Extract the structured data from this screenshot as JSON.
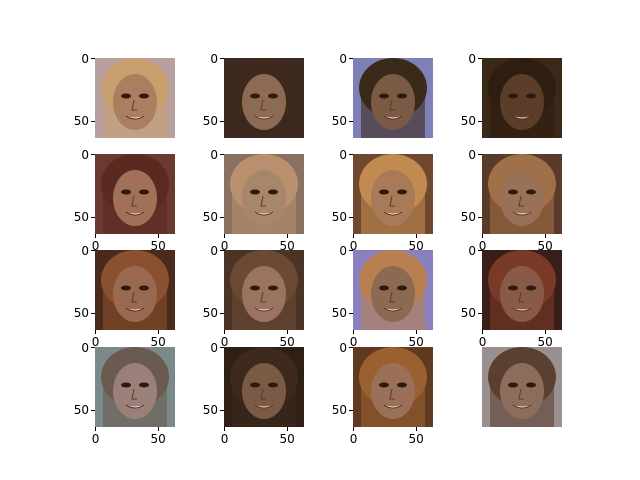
{
  "figure": {
    "y_tick_labels": [
      "0",
      "50"
    ],
    "x_tick_labels": [
      "0",
      "50"
    ],
    "panels": [
      {
        "row": 0,
        "col": 0,
        "subject": "generated-face",
        "tone": "#a97f60",
        "bg": "#b8a0a0",
        "hair": "#c8a070",
        "x_ticks": false,
        "y_ticks": true
      },
      {
        "row": 0,
        "col": 1,
        "subject": "generated-face",
        "tone": "#8c6a54",
        "bg": "#3a2a20",
        "hair": "#3e2a1c",
        "x_ticks": false,
        "y_ticks": true
      },
      {
        "row": 0,
        "col": 2,
        "subject": "generated-face",
        "tone": "#7a5a44",
        "bg": "#8080b8",
        "hair": "#3a2a1a",
        "x_ticks": false,
        "y_ticks": true
      },
      {
        "row": 0,
        "col": 3,
        "subject": "generated-face",
        "tone": "#5a3e2a",
        "bg": "#3a2818",
        "hair": "#2e1e12",
        "x_ticks": false,
        "y_ticks": true
      },
      {
        "row": 1,
        "col": 0,
        "subject": "generated-face",
        "tone": "#a07058",
        "bg": "#6a3a30",
        "hair": "#5a2a20",
        "x_ticks": true,
        "y_ticks": true
      },
      {
        "row": 1,
        "col": 1,
        "subject": "generated-face",
        "tone": "#a8866a",
        "bg": "#8a7060",
        "hair": "#b89070",
        "x_ticks": true,
        "y_ticks": true
      },
      {
        "row": 1,
        "col": 2,
        "subject": "generated-face",
        "tone": "#a87a58",
        "bg": "#704830",
        "hair": "#c08a50",
        "x_ticks": true,
        "y_ticks": true
      },
      {
        "row": 1,
        "col": 3,
        "subject": "generated-face",
        "tone": "#9a7058",
        "bg": "#5a3a28",
        "hair": "#a07048",
        "x_ticks": true,
        "y_ticks": true
      },
      {
        "row": 2,
        "col": 0,
        "subject": "generated-face",
        "tone": "#9a6a50",
        "bg": "#4a2a1a",
        "hair": "#8a5030",
        "x_ticks": true,
        "y_ticks": true
      },
      {
        "row": 2,
        "col": 1,
        "subject": "generated-face",
        "tone": "#9a7460",
        "bg": "#4a3426",
        "hair": "#6a4a34",
        "x_ticks": true,
        "y_ticks": true
      },
      {
        "row": 2,
        "col": 2,
        "subject": "generated-face",
        "tone": "#8c6a52",
        "bg": "#8a80c0",
        "hair": "#b88050",
        "x_ticks": true,
        "y_ticks": true
      },
      {
        "row": 2,
        "col": 3,
        "subject": "generated-face",
        "tone": "#8a5a48",
        "bg": "#3a1e18",
        "hair": "#7a3a28",
        "x_ticks": true,
        "y_ticks": true
      },
      {
        "row": 3,
        "col": 0,
        "subject": "generated-face",
        "tone": "#9a8078",
        "bg": "#7a8a8a",
        "hair": "#6a5a50",
        "x_ticks": true,
        "y_ticks": true
      },
      {
        "row": 3,
        "col": 1,
        "subject": "generated-face",
        "tone": "#7a5a44",
        "bg": "#2e2014",
        "hair": "#3e2a1c",
        "x_ticks": true,
        "y_ticks": true
      },
      {
        "row": 3,
        "col": 2,
        "subject": "generated-face",
        "tone": "#9a7058",
        "bg": "#603a20",
        "hair": "#9a6030",
        "x_ticks": true,
        "y_ticks": true
      },
      {
        "row": 3,
        "col": 3,
        "subject": "generated-face",
        "tone": "#8c6c5a",
        "bg": "#9a9090",
        "hair": "#5a4030",
        "x_ticks": false,
        "y_ticks": false
      }
    ]
  }
}
